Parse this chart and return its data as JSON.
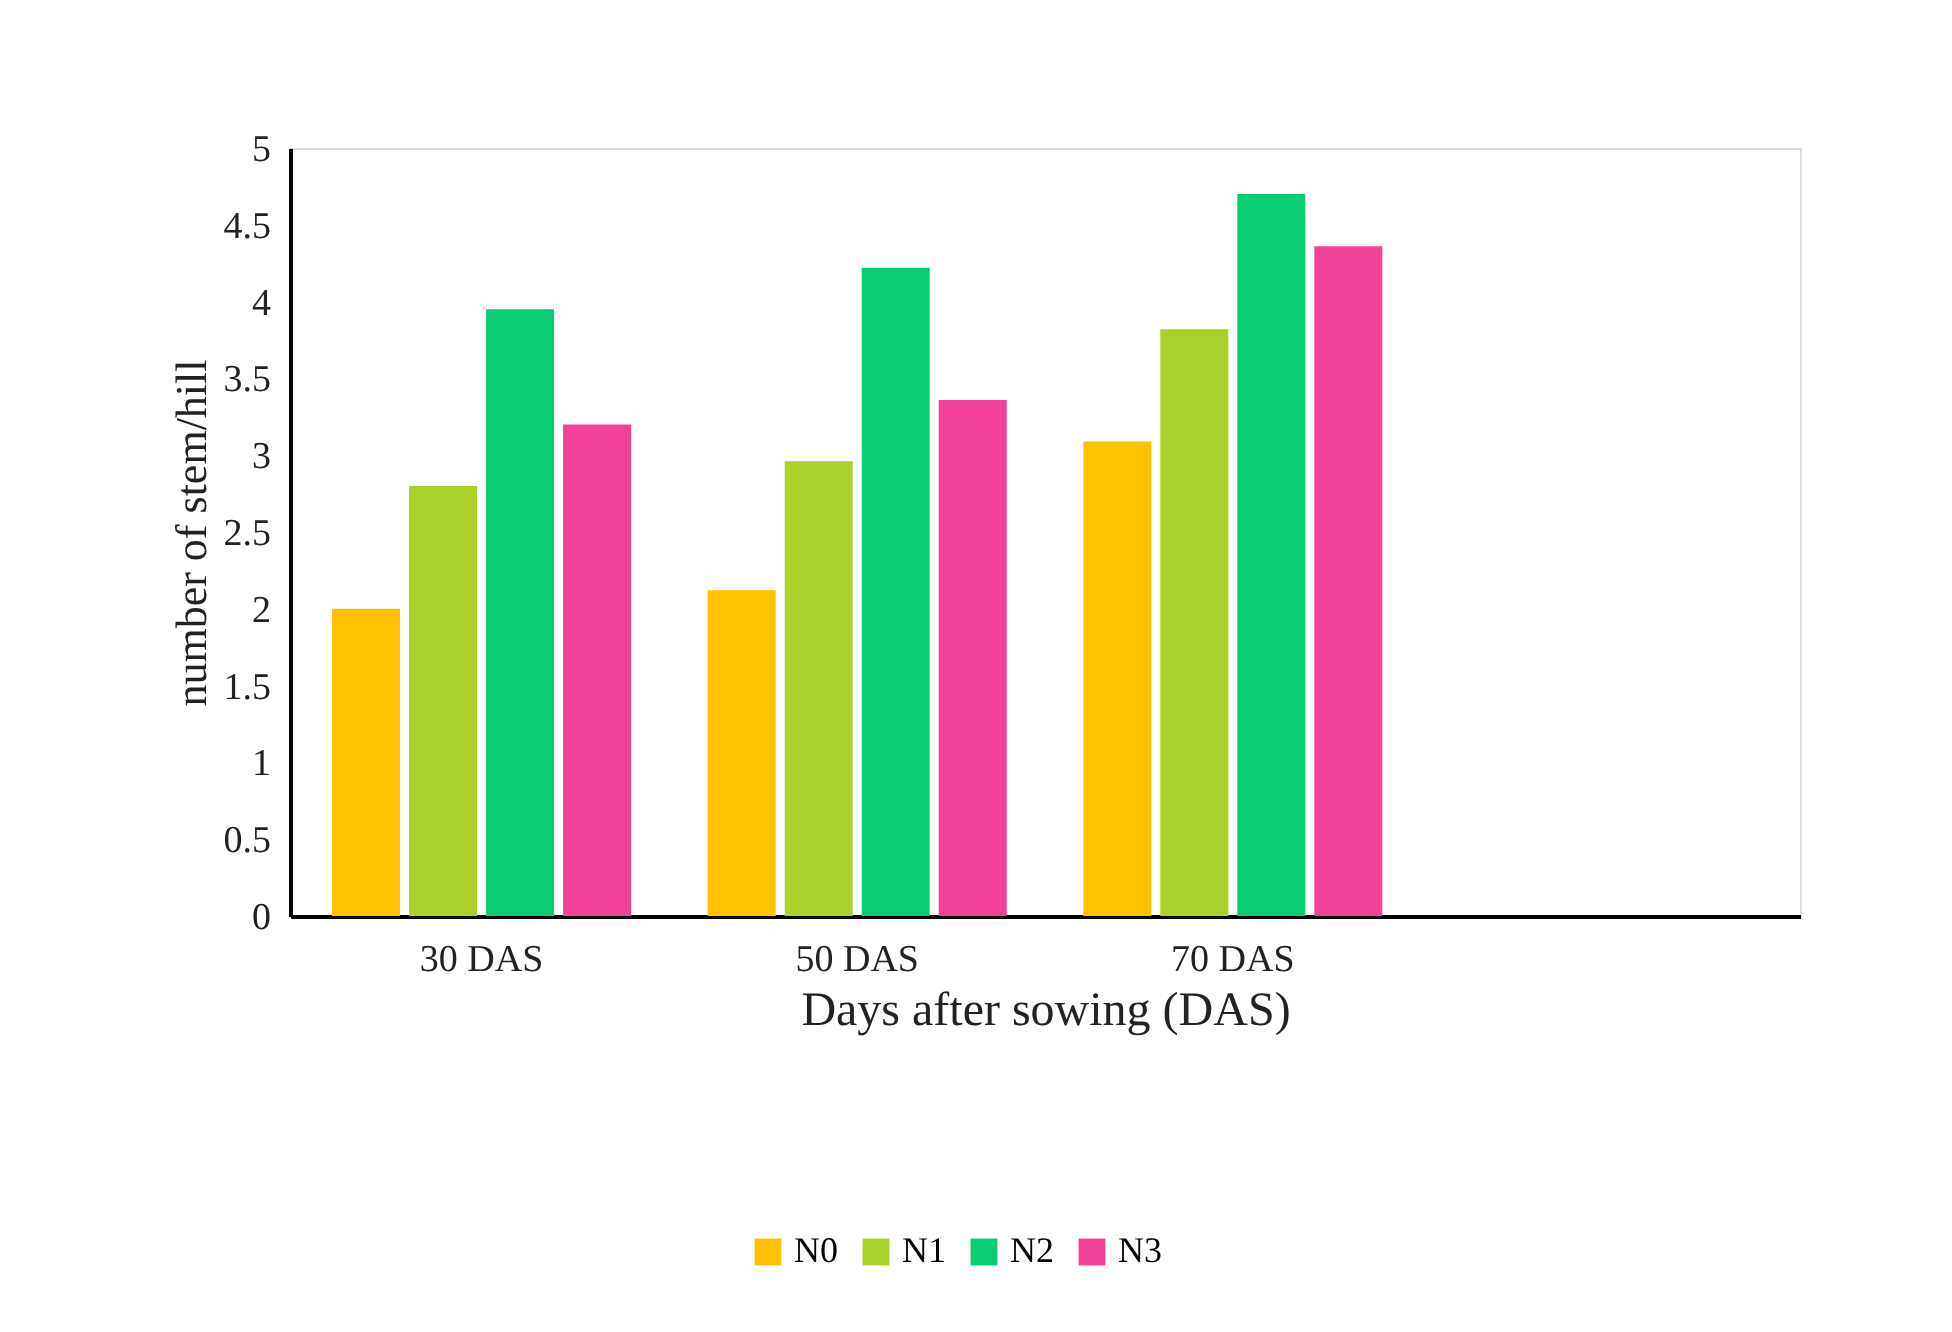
{
  "chart_data": {
    "type": "bar",
    "xlabel": "Days after sowing (DAS)",
    "ylabel": "number of stem/hill",
    "categories": [
      "30 DAS",
      "50 DAS",
      "70 DAS",
      null
    ],
    "series": [
      {
        "name": "N0",
        "color": "#ffc000",
        "values": [
          2.0,
          2.12,
          3.09,
          null
        ]
      },
      {
        "name": "N1",
        "color": "#a9d12a",
        "values": [
          2.8,
          2.96,
          3.82,
          null
        ]
      },
      {
        "name": "N2",
        "color": "#0acc74",
        "values": [
          3.95,
          4.22,
          4.7,
          null
        ]
      },
      {
        "name": "N3",
        "color": "#f24297",
        "values": [
          3.2,
          3.36,
          4.36,
          null
        ]
      }
    ],
    "ylim": [
      0,
      5
    ],
    "yticks": [
      0,
      0.5,
      1,
      1.5,
      2,
      2.5,
      3,
      3.5,
      4,
      4.5,
      5
    ],
    "grid": false,
    "legend": "bottom"
  }
}
